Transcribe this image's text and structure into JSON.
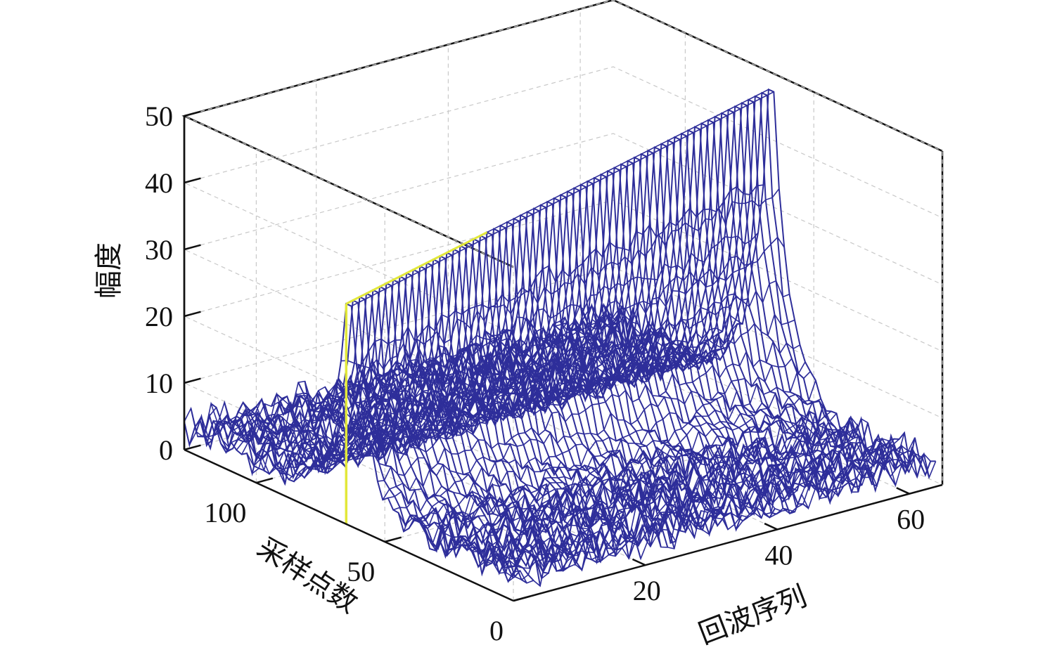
{
  "chart_data": {
    "type": "surface-mesh",
    "title": "",
    "xlabel": "回波序列",
    "ylabel": "采样点数",
    "zlabel": "幅度",
    "xlim": [
      0,
      65
    ],
    "ylim": [
      0,
      128
    ],
    "zlim": [
      0,
      50
    ],
    "xticks": [
      "20",
      "40",
      "60"
    ],
    "xtick_values": [
      20,
      40,
      60
    ],
    "yticks": [
      "0",
      "50",
      "100"
    ],
    "ytick_values": [
      0,
      50,
      100
    ],
    "zticks": [
      "0",
      "10",
      "20",
      "30",
      "40",
      "50"
    ],
    "ztick_values": [
      0,
      10,
      20,
      30,
      40,
      50
    ],
    "grid": true,
    "colors": {
      "mesh": "#2e2e9a",
      "highlight": "#e2e83a",
      "axis": "#111111",
      "grid": "#c8c8c8"
    },
    "peak": {
      "sample_index": 64,
      "echo_range": [
        1,
        64
      ],
      "amplitude_start": 33,
      "amplitude_end": 48
    },
    "noise_floor": {
      "base": 2.5,
      "spread": 5
    },
    "echo_count": 64,
    "sample_count": 128
  }
}
